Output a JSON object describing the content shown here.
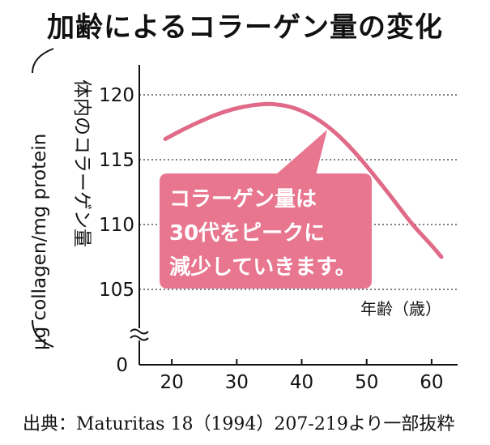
{
  "title": "加齢によるコラーゲン量の変化",
  "source": "出典：Maturitas 18（1994）207-219より一部抜粋",
  "chart_data": {
    "type": "line",
    "ylabel_main": "体内のコラーゲン量",
    "ylabel_unit": "μg collagen/mg protein",
    "xlabel": "年齢（歳）",
    "xticks": [
      "20",
      "30",
      "40",
      "50",
      "60"
    ],
    "yticks": [
      "105",
      "110",
      "115",
      "120"
    ],
    "ybreak_tick": "0",
    "xlim": [
      15,
      64
    ],
    "ylim": [
      103,
      121
    ],
    "y_axis_break": true,
    "grid": "horizontal-dotted",
    "callout": [
      "コラーゲン量は",
      "30代をピークに",
      "減少していきます。"
    ],
    "series": [
      {
        "color": "#e06a88",
        "points": [
          [
            19,
            116.6
          ],
          [
            22,
            117.4
          ],
          [
            25,
            118.1
          ],
          [
            28,
            118.7
          ],
          [
            31,
            119.1
          ],
          [
            34,
            119.3
          ],
          [
            36,
            119.3
          ],
          [
            39,
            119.0
          ],
          [
            42,
            118.3
          ],
          [
            45,
            117.2
          ],
          [
            48,
            115.7
          ],
          [
            51,
            113.9
          ],
          [
            54,
            112.0
          ],
          [
            57,
            110.0
          ],
          [
            60,
            108.4
          ],
          [
            61.5,
            107.5
          ]
        ]
      }
    ],
    "colors": {
      "line": "#e06a88",
      "callout": "#e8768f",
      "grid": "#555555"
    }
  }
}
